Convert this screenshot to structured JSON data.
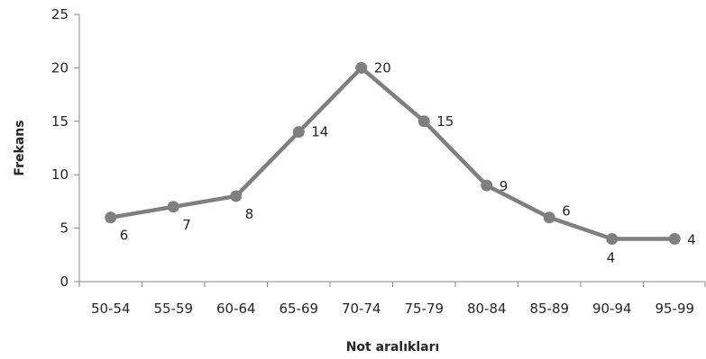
{
  "chart_data": {
    "type": "line",
    "title": "",
    "xlabel": "Not aralıkları",
    "ylabel": "Frekans",
    "categories": [
      "50-54",
      "55-59",
      "60-64",
      "65-69",
      "70-74",
      "75-79",
      "80-84",
      "85-89",
      "90-94",
      "95-99"
    ],
    "series": [
      {
        "values": [
          6,
          7,
          8,
          14,
          20,
          15,
          9,
          6,
          4,
          4
        ]
      }
    ],
    "data_labels": [
      "6",
      "7",
      "8",
      "14",
      "20",
      "15",
      "9",
      "6",
      "4",
      "4"
    ],
    "ylim": [
      0,
      25
    ],
    "yticks": [
      "0",
      "5",
      "10",
      "15",
      "20",
      "25"
    ],
    "grid": false,
    "legend": "none",
    "colors": {
      "line": "#7f7f7f",
      "axis": "#868686",
      "text": "#262626"
    }
  }
}
